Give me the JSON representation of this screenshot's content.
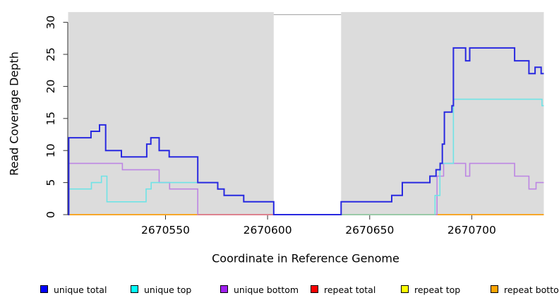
{
  "figure": {
    "ylabel": "Read Coverage Depth",
    "xlabel": "Coordinate in Reference Genome"
  },
  "chart_data": {
    "type": "line",
    "subtype": "step-coverage-plot",
    "title": "",
    "xlabel": "Coordinate in Reference Genome",
    "ylabel": "Read Coverage Depth",
    "xlim": [
      2670502.3,
      2670735.3
    ],
    "ylim": [
      0,
      31.6
    ],
    "x_ticks": [
      2670550,
      2670600,
      2670650,
      2670700
    ],
    "y_ticks": [
      0,
      5,
      10,
      15,
      20,
      25,
      30
    ],
    "grid": "off",
    "legend_position": "bottom",
    "background_bands": [
      {
        "name": "covered-region-left",
        "x0": 2670502.3,
        "x1": 2670603,
        "color": "#DCDCDC"
      },
      {
        "name": "covered-region-right",
        "x0": 2670636,
        "x1": 2670735.3,
        "color": "#DCDCDC"
      }
    ],
    "white_gap": {
      "x0": 2670603,
      "x1": 2670636
    },
    "gap_top_line": {
      "x0": 2670603,
      "x1": 2670636,
      "y": 31.2,
      "color": "#9A9A9A"
    },
    "baseline_overlays": [
      {
        "name": "unique-bottom-at-zero-blend",
        "x0": 2670565.8,
        "x1": 2670603,
        "y": 0,
        "color": "#E07B8E"
      },
      {
        "name": "unique-top-at-zero-blend",
        "x0": 2670636,
        "x1": 2670682,
        "y": 0,
        "color": "#97CDA2"
      }
    ],
    "series": [
      {
        "name": "repeat total",
        "color": "#FF0000",
        "line_color": "#DD4444",
        "width": 1.4,
        "points": [
          [
            2670502.3,
            0
          ]
        ],
        "end": 2670735.3
      },
      {
        "name": "repeat top",
        "color": "#FFFF00",
        "line_color": "#EEEE44",
        "width": 1.4,
        "points": [
          [
            2670502.3,
            0
          ]
        ],
        "end": 2670735.3
      },
      {
        "name": "repeat bottom",
        "color": "#FFA500",
        "line_color": "#FFA217",
        "width": 1.6,
        "points": [
          [
            2670502.3,
            0
          ]
        ],
        "end": 2670735.3
      },
      {
        "name": "unique bottom",
        "color": "#A020F0",
        "line_color": "#BD85E3",
        "width": 1.6,
        "points": [
          [
            2670502.3,
            0
          ],
          [
            2670502.6,
            8
          ],
          [
            2670528.9,
            7
          ],
          [
            2670546.9,
            5
          ],
          [
            2670552,
            4
          ],
          [
            2670565.8,
            0
          ],
          [
            2670683,
            6
          ],
          [
            2670686.2,
            8
          ],
          [
            2670697,
            6
          ],
          [
            2670699,
            8
          ],
          [
            2670721,
            6
          ],
          [
            2670728,
            4
          ],
          [
            2670731.5,
            5
          ]
        ],
        "end": 2670735.3
      },
      {
        "name": "unique top",
        "color": "#00FFFF",
        "line_color": "#6FE3E6",
        "width": 1.6,
        "points": [
          [
            2670502.3,
            0
          ],
          [
            2670502.6,
            4
          ],
          [
            2670513.7,
            5
          ],
          [
            2670518.6,
            6
          ],
          [
            2670521.3,
            2
          ],
          [
            2670540.5,
            4
          ],
          [
            2670543,
            5
          ],
          [
            2670575.6,
            4
          ],
          [
            2670578.7,
            3
          ],
          [
            2670588.3,
            2
          ],
          [
            2670603,
            0
          ],
          [
            2670682,
            3
          ],
          [
            2670684.4,
            8
          ],
          [
            2670691,
            18
          ],
          [
            2670734.4,
            17
          ]
        ],
        "end": 2670735.3
      },
      {
        "name": "unique total",
        "color": "#0000FF",
        "line_color": "#2929E0",
        "width": 2,
        "points": [
          [
            2670502.3,
            0
          ],
          [
            2670502.6,
            12
          ],
          [
            2670513.5,
            13
          ],
          [
            2670517.7,
            14
          ],
          [
            2670520.7,
            10
          ],
          [
            2670528.4,
            9
          ],
          [
            2670540.8,
            11
          ],
          [
            2670542.8,
            12
          ],
          [
            2670546.9,
            10
          ],
          [
            2670551.8,
            9
          ],
          [
            2670565.8,
            5
          ],
          [
            2670575.6,
            4
          ],
          [
            2670578.7,
            3
          ],
          [
            2670588.3,
            2
          ],
          [
            2670603,
            0
          ],
          [
            2670636,
            2
          ],
          [
            2670660.8,
            3
          ],
          [
            2670666,
            5
          ],
          [
            2670679.5,
            6
          ],
          [
            2670682.5,
            7
          ],
          [
            2670684.5,
            8
          ],
          [
            2670685.6,
            11
          ],
          [
            2670686.6,
            16
          ],
          [
            2670690.3,
            17
          ],
          [
            2670691,
            26
          ],
          [
            2670697,
            24
          ],
          [
            2670699,
            26
          ],
          [
            2670721,
            24
          ],
          [
            2670728,
            22
          ],
          [
            2670731,
            23
          ],
          [
            2670734,
            22
          ]
        ],
        "end": 2670735.3
      }
    ],
    "legend": [
      {
        "label": "unique total",
        "color": "#0000FF"
      },
      {
        "label": "unique top",
        "color": "#00FFFF"
      },
      {
        "label": "unique bottom",
        "color": "#A020F0"
      },
      {
        "label": "repeat total",
        "color": "#FF0000"
      },
      {
        "label": "repeat top",
        "color": "#FFFF00"
      },
      {
        "label": "repeat bottom",
        "color": "#FFA500"
      }
    ]
  }
}
